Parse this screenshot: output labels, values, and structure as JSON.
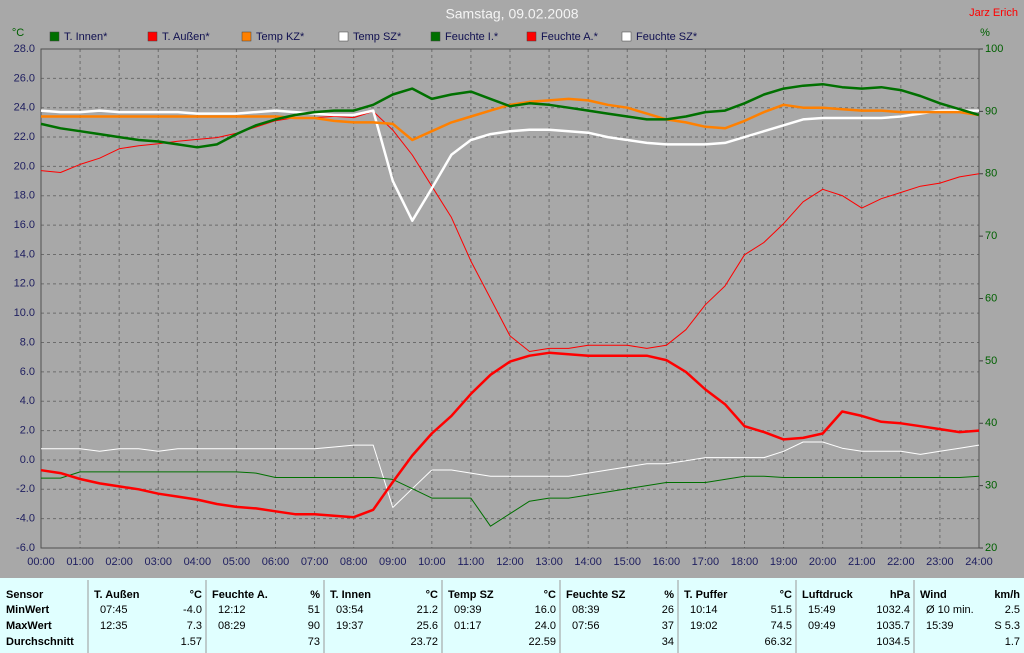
{
  "chart_data": {
    "type": "line",
    "title": "Samstag, 09.02.2008",
    "author": "Jarz Erich",
    "y_label": "°C",
    "y2_label": "%",
    "grid": true,
    "xlim": [
      0,
      24
    ],
    "ylim": [
      -6,
      28
    ],
    "y2lim": [
      20,
      100
    ],
    "xticks": [
      {
        "value": 0,
        "label": "00:00"
      },
      {
        "value": 1,
        "label": "01:00"
      },
      {
        "value": 2,
        "label": "02:00"
      },
      {
        "value": 3,
        "label": "03:00"
      },
      {
        "value": 4,
        "label": "04:00"
      },
      {
        "value": 5,
        "label": "05:00"
      },
      {
        "value": 6,
        "label": "06:00"
      },
      {
        "value": 7,
        "label": "07:00"
      },
      {
        "value": 8,
        "label": "08:00"
      },
      {
        "value": 9,
        "label": "09:00"
      },
      {
        "value": 10,
        "label": "10:00"
      },
      {
        "value": 11,
        "label": "11:00"
      },
      {
        "value": 12,
        "label": "12:00"
      },
      {
        "value": 13,
        "label": "13:00"
      },
      {
        "value": 14,
        "label": "14:00"
      },
      {
        "value": 15,
        "label": "15:00"
      },
      {
        "value": 16,
        "label": "16:00"
      },
      {
        "value": 17,
        "label": "17:00"
      },
      {
        "value": 18,
        "label": "18:00"
      },
      {
        "value": 19,
        "label": "19:00"
      },
      {
        "value": 20,
        "label": "20:00"
      },
      {
        "value": 21,
        "label": "21:00"
      },
      {
        "value": 22,
        "label": "22:00"
      },
      {
        "value": 23,
        "label": "23:00"
      },
      {
        "value": 24,
        "label": "24:00"
      }
    ],
    "yticks": [
      {
        "value": -6,
        "label": "-6.0"
      },
      {
        "value": -4,
        "label": "-4.0"
      },
      {
        "value": -2,
        "label": "-2.0"
      },
      {
        "value": 0,
        "label": "0.0"
      },
      {
        "value": 2,
        "label": "2.0"
      },
      {
        "value": 4,
        "label": "4.0"
      },
      {
        "value": 6,
        "label": "6.0"
      },
      {
        "value": 8,
        "label": "8.0"
      },
      {
        "value": 10,
        "label": "10.0"
      },
      {
        "value": 12,
        "label": "12.0"
      },
      {
        "value": 14,
        "label": "14.0"
      },
      {
        "value": 16,
        "label": "16.0"
      },
      {
        "value": 18,
        "label": "18.0"
      },
      {
        "value": 20,
        "label": "20.0"
      },
      {
        "value": 22,
        "label": "22.0"
      },
      {
        "value": 24,
        "label": "24.0"
      },
      {
        "value": 26,
        "label": "26.0"
      },
      {
        "value": 28,
        "label": "28.0"
      }
    ],
    "y2ticks": [
      20,
      30,
      40,
      50,
      60,
      70,
      80,
      90,
      100
    ],
    "x": [
      0,
      0.5,
      1,
      1.5,
      2,
      2.5,
      3,
      3.5,
      4,
      4.5,
      5,
      5.5,
      6,
      6.5,
      7,
      7.5,
      8,
      8.5,
      9,
      9.5,
      10,
      10.5,
      11,
      11.5,
      12,
      12.5,
      13,
      13.5,
      14,
      14.5,
      15,
      15.5,
      16,
      16.5,
      17,
      17.5,
      18,
      18.5,
      19,
      19.5,
      20,
      20.5,
      21,
      21.5,
      22,
      22.5,
      23,
      23.5,
      24
    ],
    "series": [
      {
        "name": "T. Innen*",
        "color": "#007000",
        "axis": "y",
        "values": [
          22.9,
          22.6,
          22.4,
          22.2,
          22.0,
          21.8,
          21.7,
          21.5,
          21.3,
          21.5,
          22.2,
          22.8,
          23.2,
          23.5,
          23.7,
          23.8,
          23.8,
          24.2,
          24.9,
          25.3,
          24.6,
          24.9,
          25.1,
          24.6,
          24.1,
          24.3,
          24.2,
          24.0,
          23.8,
          23.6,
          23.4,
          23.2,
          23.2,
          23.4,
          23.7,
          23.8,
          24.3,
          24.9,
          25.3,
          25.5,
          25.6,
          25.4,
          25.3,
          25.4,
          25.2,
          24.8,
          24.3,
          23.9,
          23.5
        ]
      },
      {
        "name": "T. Außen*",
        "color": "#ff0000",
        "axis": "y",
        "values": [
          -0.7,
          -0.9,
          -1.3,
          -1.6,
          -1.8,
          -2.0,
          -2.3,
          -2.5,
          -2.7,
          -3.0,
          -3.2,
          -3.3,
          -3.5,
          -3.7,
          -3.7,
          -3.8,
          -3.9,
          -3.4,
          -1.5,
          0.3,
          1.8,
          3.0,
          4.5,
          5.8,
          6.7,
          7.1,
          7.3,
          7.2,
          7.1,
          7.1,
          7.1,
          7.1,
          6.8,
          6.0,
          4.8,
          3.8,
          2.3,
          1.9,
          1.4,
          1.5,
          1.8,
          3.3,
          3.0,
          2.6,
          2.5,
          2.3,
          2.1,
          1.9,
          2.0
        ]
      },
      {
        "name": "Temp KZ*",
        "color": "#ff8000",
        "axis": "y",
        "values": [
          23.4,
          23.4,
          23.4,
          23.4,
          23.4,
          23.4,
          23.4,
          23.4,
          23.4,
          23.4,
          23.4,
          23.4,
          23.4,
          23.3,
          23.3,
          23.1,
          23.0,
          23.0,
          22.9,
          21.8,
          22.4,
          23.0,
          23.4,
          23.8,
          24.2,
          24.4,
          24.5,
          24.6,
          24.5,
          24.2,
          24.0,
          23.6,
          23.2,
          23.0,
          22.7,
          22.6,
          23.1,
          23.7,
          24.2,
          24.0,
          24.0,
          23.9,
          23.8,
          23.8,
          23.7,
          23.7,
          23.7,
          23.7,
          23.5
        ]
      },
      {
        "name": "Temp SZ*",
        "color": "#ffffff",
        "axis": "y",
        "values": [
          23.8,
          23.7,
          23.7,
          23.8,
          23.7,
          23.7,
          23.7,
          23.7,
          23.6,
          23.6,
          23.6,
          23.7,
          23.8,
          23.7,
          23.6,
          23.5,
          23.5,
          23.8,
          19.0,
          16.3,
          18.5,
          20.8,
          21.8,
          22.2,
          22.4,
          22.5,
          22.5,
          22.4,
          22.3,
          22.0,
          21.8,
          21.6,
          21.5,
          21.5,
          21.5,
          21.6,
          22.0,
          22.4,
          22.8,
          23.2,
          23.3,
          23.3,
          23.3,
          23.3,
          23.4,
          23.6,
          23.8,
          23.8,
          23.8
        ]
      },
      {
        "name": "Feuchte I.*",
        "color": "#007000",
        "axis": "y2",
        "values": [
          31.2,
          31.2,
          32.2,
          32.2,
          32.2,
          32.2,
          32.2,
          32.2,
          32.2,
          32.2,
          32.2,
          32.0,
          31.3,
          31.3,
          31.3,
          31.3,
          31.3,
          31.3,
          31.0,
          29.5,
          28.0,
          28.0,
          28.0,
          23.5,
          25.5,
          27.5,
          28.0,
          28.0,
          28.5,
          29.0,
          29.5,
          30.0,
          30.5,
          30.5,
          30.5,
          31.0,
          31.5,
          31.5,
          31.3,
          31.3,
          31.3,
          31.3,
          31.3,
          31.3,
          31.3,
          31.3,
          31.3,
          31.3,
          31.5
        ]
      },
      {
        "name": "Feuchte A.*",
        "color": "#ff0000",
        "axis": "y2",
        "values": [
          80.5,
          80.2,
          81.5,
          82.5,
          84,
          84.5,
          84.8,
          85.2,
          85.5,
          85.8,
          86.5,
          87.5,
          88.5,
          89,
          89,
          89.2,
          89,
          90,
          87,
          83,
          78,
          73,
          66,
          60,
          54,
          51.5,
          52,
          52,
          52.5,
          52.5,
          52.5,
          52,
          52.5,
          55,
          59,
          62,
          67,
          69,
          72,
          75.5,
          77.5,
          76.5,
          74.5,
          76,
          77,
          78,
          78.5,
          79.5,
          80
        ]
      },
      {
        "name": "Feuchte SZ*",
        "color": "#ffffff",
        "axis": "y2",
        "values": [
          35.9,
          35.9,
          35.9,
          35.5,
          35.9,
          35.9,
          35.5,
          35.9,
          35.9,
          35.9,
          35.9,
          35.9,
          35.9,
          35.9,
          35.9,
          36.2,
          36.5,
          36.5,
          26.5,
          29.5,
          32.5,
          32.5,
          32.0,
          31.5,
          31.5,
          31.5,
          31.5,
          31.5,
          32.0,
          32.5,
          33.0,
          33.5,
          33.5,
          34.0,
          34.5,
          34.5,
          34.5,
          34.5,
          35.5,
          37.0,
          37.0,
          36.0,
          35.5,
          35.5,
          35.5,
          35.0,
          35.5,
          36.0,
          36.5
        ]
      }
    ]
  },
  "table": {
    "row_labels": [
      "Sensor",
      "MinWert",
      "MaxWert",
      "Durchschnitt"
    ],
    "columns": [
      {
        "name": "T. Außen",
        "unit": "°C",
        "min_time": "07:45",
        "min": "-4.0",
        "max_time": "12:35",
        "max": "7.3",
        "avg": "1.57"
      },
      {
        "name": "Feuchte A.",
        "unit": "%",
        "min_time": "12:12",
        "min": "51",
        "max_time": "08:29",
        "max": "90",
        "avg": "73"
      },
      {
        "name": "T. Innen",
        "unit": "°C",
        "min_time": "03:54",
        "min": "21.2",
        "max_time": "19:37",
        "max": "25.6",
        "avg": "23.72"
      },
      {
        "name": "Temp SZ",
        "unit": "°C",
        "min_time": "09:39",
        "min": "16.0",
        "max_time": "01:17",
        "max": "24.0",
        "avg": "22.59"
      },
      {
        "name": "Feuchte SZ",
        "unit": "%",
        "min_time": "08:39",
        "min": "26",
        "max_time": "07:56",
        "max": "37",
        "avg": "34"
      },
      {
        "name": "T. Puffer",
        "unit": "°C",
        "min_time": "10:14",
        "min": "51.5",
        "max_time": "19:02",
        "max": "74.5",
        "avg": "66.32"
      },
      {
        "name": "Luftdruck",
        "unit": "hPa",
        "min_time": "15:49",
        "min": "1032.4",
        "max_time": "09:49",
        "max": "1035.7",
        "avg": "1034.5"
      },
      {
        "name": "Wind",
        "unit": "km/h",
        "min_time": "Ø 10 min.",
        "min": "2.5",
        "max_time": "15:39",
        "max": "S 5.3",
        "avg": "1.7"
      }
    ]
  }
}
